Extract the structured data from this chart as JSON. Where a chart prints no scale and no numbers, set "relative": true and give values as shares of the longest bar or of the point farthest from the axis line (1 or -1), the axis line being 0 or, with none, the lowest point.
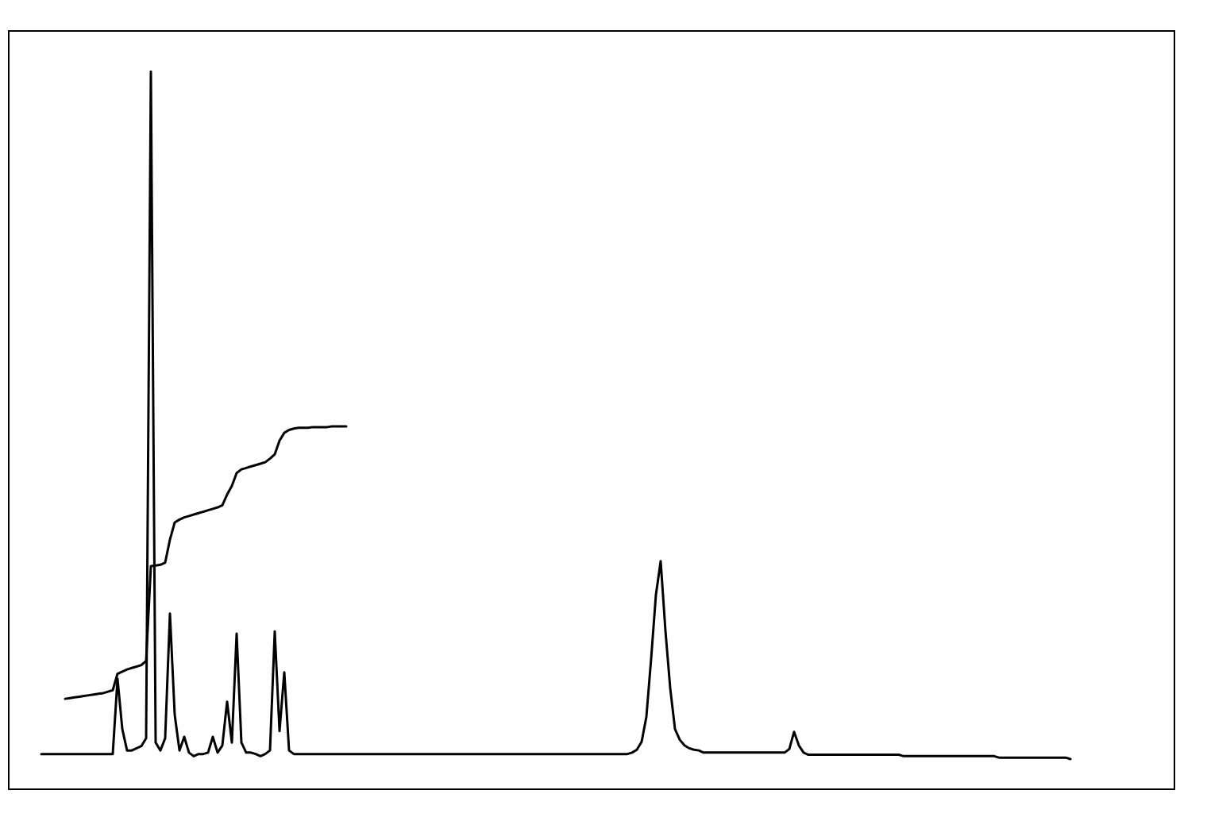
{
  "chart_data": {
    "type": "line",
    "relative": true,
    "line_style": "solid",
    "categories": [
      null,
      null,
      null,
      null,
      null,
      null,
      null,
      null,
      null,
      null,
      null,
      null,
      null,
      null,
      null,
      null,
      null,
      null,
      null,
      null,
      null,
      null,
      null,
      null,
      null,
      null,
      null,
      null,
      null,
      null,
      null,
      null,
      null,
      null,
      null,
      null,
      null,
      null,
      null,
      null,
      null,
      null,
      null,
      null,
      null,
      null,
      null,
      null,
      null,
      null,
      null,
      null,
      null,
      null,
      null,
      null,
      null,
      null,
      null,
      null,
      null,
      null,
      null,
      null,
      null,
      null,
      null,
      null,
      null,
      null,
      null,
      null,
      null,
      null,
      null,
      null,
      null,
      null,
      null,
      null,
      null,
      null,
      null,
      null,
      null,
      null,
      null,
      null,
      null,
      null,
      null,
      null,
      null,
      null,
      null,
      null,
      null,
      null,
      null,
      null,
      null,
      null,
      null,
      null,
      null,
      null,
      null,
      null,
      null,
      null,
      null,
      null,
      null,
      null,
      null,
      null,
      null,
      null,
      null,
      null,
      null,
      null,
      null,
      null,
      null,
      null,
      null,
      null,
      null,
      null,
      null,
      null,
      null,
      null,
      null,
      null,
      null,
      null,
      null,
      null,
      null,
      null,
      null,
      null,
      null,
      null,
      null,
      null,
      null,
      null,
      null,
      null,
      null,
      null,
      null,
      null,
      null,
      null,
      null,
      null,
      null,
      null,
      null,
      null,
      null,
      null,
      null,
      null,
      null,
      null,
      null,
      null,
      null,
      null,
      null,
      null,
      null,
      null,
      null,
      null,
      null,
      null,
      null,
      null,
      null,
      null,
      null,
      null,
      null,
      null,
      null,
      null,
      null,
      null,
      null,
      null,
      null,
      null,
      null,
      null,
      null,
      null,
      null,
      null,
      null,
      null,
      null,
      null,
      null,
      null,
      null,
      null,
      null,
      null,
      null,
      null,
      null
    ],
    "series": [
      {
        "color": "#000000",
        "values": [
          0.048,
          0.048,
          0.048,
          0.048,
          0.048,
          0.048,
          0.048,
          0.048,
          0.048,
          0.048,
          0.048,
          0.048,
          0.048,
          0.048,
          0.048,
          0.048,
          0.153,
          0.083,
          0.053,
          0.053,
          0.056,
          0.059,
          0.07,
          1,
          0.064,
          0.053,
          0.07,
          0.244,
          0.103,
          0.053,
          0.072,
          0.05,
          0.045,
          0.048,
          0.048,
          0.05,
          0.072,
          0.05,
          0.06,
          0.121,
          0.064,
          0.216,
          0.064,
          0.05,
          0.05,
          0.048,
          0.045,
          0.048,
          0.053,
          0.219,
          0.08,
          0.162,
          0.053,
          0.048,
          0.048,
          0.048,
          0.048,
          0.048,
          0.048,
          0.048,
          0.048,
          0.048,
          0.048,
          0.048,
          0.048,
          0.048,
          0.048,
          0.048,
          0.048,
          0.048,
          0.048,
          0.048,
          0.048,
          0.048,
          0.048,
          0.048,
          0.048,
          0.048,
          0.048,
          0.048,
          0.048,
          0.048,
          0.048,
          0.048,
          0.048,
          0.048,
          0.048,
          0.048,
          0.048,
          0.048,
          0.048,
          0.048,
          0.048,
          0.048,
          0.048,
          0.048,
          0.048,
          0.048,
          0.048,
          0.048,
          0.048,
          0.048,
          0.048,
          0.048,
          0.048,
          0.048,
          0.048,
          0.048,
          0.048,
          0.048,
          0.048,
          0.048,
          0.048,
          0.048,
          0.048,
          0.048,
          0.048,
          0.048,
          0.048,
          0.048,
          0.048,
          0.048,
          0.048,
          0.048,
          0.05,
          0.054,
          0.065,
          0.1,
          0.181,
          0.27,
          0.317,
          0.22,
          0.14,
          0.083,
          0.068,
          0.06,
          0.056,
          0.054,
          0.053,
          0.05,
          0.05,
          0.05,
          0.05,
          0.05,
          0.05,
          0.05,
          0.05,
          0.05,
          0.05,
          0.05,
          0.05,
          0.05,
          0.05,
          0.05,
          0.05,
          0.05,
          0.05,
          0.055,
          0.079,
          0.06,
          0.05,
          0.047,
          0.047,
          0.047,
          0.047,
          0.047,
          0.047,
          0.047,
          0.047,
          0.047,
          0.047,
          0.047,
          0.047,
          0.047,
          0.047,
          0.047,
          0.047,
          0.047,
          0.047,
          0.047,
          0.047,
          0.045,
          0.045,
          0.045,
          0.045,
          0.045,
          0.045,
          0.045,
          0.045,
          0.045,
          0.045,
          0.045,
          0.045,
          0.045,
          0.045,
          0.045,
          0.045,
          0.045,
          0.045,
          0.045,
          0.045,
          0.043,
          0.043,
          0.043,
          0.043,
          0.043,
          0.043,
          0.043,
          0.043,
          0.043,
          0.043,
          0.043,
          0.043,
          0.043,
          0.043,
          0.043,
          0.041
        ]
      },
      {
        "color": "#000000",
        "values": [
          null,
          null,
          null,
          null,
          null,
          0.125,
          0.126,
          0.127,
          0.128,
          0.129,
          0.13,
          0.131,
          0.132,
          0.133,
          0.135,
          0.137,
          0.16,
          0.163,
          0.166,
          0.168,
          0.17,
          0.172,
          0.178,
          0.31,
          0.311,
          0.312,
          0.315,
          0.347,
          0.371,
          0.375,
          0.378,
          0.38,
          0.382,
          0.384,
          0.386,
          0.388,
          0.39,
          0.392,
          0.395,
          0.41,
          0.422,
          0.44,
          0.445,
          0.447,
          0.449,
          0.451,
          0.453,
          0.455,
          0.46,
          0.466,
          0.485,
          0.496,
          0.5,
          0.502,
          0.503,
          0.503,
          0.503,
          0.504,
          0.504,
          0.504,
          0.504,
          0.505,
          0.505,
          0.505,
          0.505,
          null,
          null,
          null,
          null,
          null,
          null,
          null,
          null,
          null,
          null,
          null,
          null,
          null,
          null,
          null,
          null,
          null,
          null,
          null,
          null,
          null,
          null,
          null,
          null,
          null,
          null,
          null,
          null,
          null,
          null,
          null,
          null,
          null,
          null,
          null,
          null,
          null,
          null,
          null,
          null,
          null,
          null,
          null,
          null,
          null,
          null,
          null,
          null,
          null,
          null,
          null,
          null,
          null,
          null,
          null,
          null,
          null,
          null,
          null,
          null,
          null,
          null,
          null,
          null,
          null,
          null,
          null,
          null,
          null,
          null,
          null,
          null,
          null,
          null,
          null,
          null,
          null,
          null,
          null,
          null,
          null,
          null,
          null,
          null,
          null,
          null,
          null,
          null,
          null,
          null,
          null,
          null,
          null,
          null,
          null,
          null,
          null,
          null,
          null,
          null,
          null,
          null,
          null,
          null,
          null,
          null,
          null,
          null,
          null,
          null,
          null,
          null,
          null,
          null,
          null,
          null,
          null,
          null,
          null,
          null,
          null,
          null,
          null,
          null,
          null,
          null,
          null,
          null,
          null,
          null,
          null,
          null,
          null,
          null,
          null,
          null,
          null,
          null,
          null,
          null,
          null,
          null,
          null,
          null,
          null,
          null,
          null,
          null,
          null,
          null,
          null,
          null
        ]
      }
    ]
  }
}
